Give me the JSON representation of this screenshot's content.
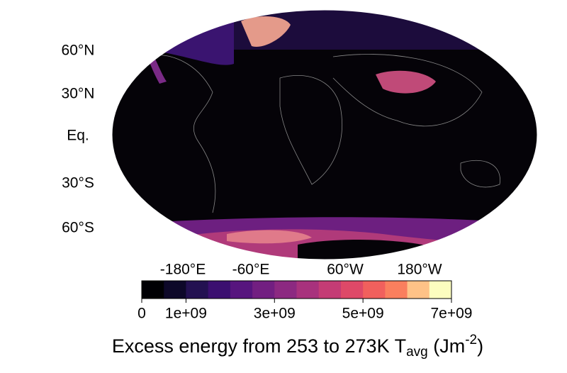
{
  "map": {
    "lat_labels": [
      "60°N",
      "30°N",
      "Eq.",
      "30°S",
      "60°S"
    ],
    "lon_labels": [
      "-180°E",
      "-60°E",
      "60°W",
      "180°W"
    ],
    "colorbar": {
      "range": [
        0,
        7000000000
      ],
      "colors": [
        "#000004",
        "#0d0829",
        "#231151",
        "#3b0f70",
        "#57157e",
        "#721f81",
        "#8c2981",
        "#a8327d",
        "#c43c75",
        "#de4968",
        "#f1605d",
        "#fa7f5e",
        "#fec287",
        "#fcfdbf"
      ],
      "ticks": [
        0,
        {
          "value": 1000000000,
          "label": "1e+09"
        },
        {
          "value": 3000000000,
          "label": "3e+09"
        },
        {
          "value": 5000000000,
          "label": "5e+09"
        },
        {
          "value": 7000000000,
          "label": "7e+09"
        }
      ]
    },
    "title": {
      "main": "Excess energy from 253 to 273K T",
      "sub": "avg",
      "unit_open": " (Jm",
      "sup": "-2",
      "unit_close": ")"
    }
  }
}
